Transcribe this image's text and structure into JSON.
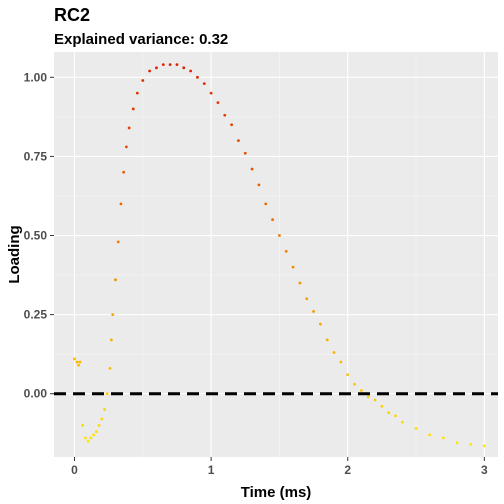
{
  "chart_data": {
    "type": "scatter",
    "title": "RC2",
    "subtitle": "Explained variance: 0.32",
    "xlabel": "Time (ms)",
    "ylabel": "Loading",
    "xlim": [
      -0.15,
      3.1
    ],
    "ylim": [
      -0.2,
      1.08
    ],
    "x_ticks": [
      0,
      1,
      2,
      3
    ],
    "x_tick_labels": [
      "0",
      "1",
      "2",
      "3"
    ],
    "y_ticks": [
      0,
      0.25,
      0.5,
      0.75,
      1.0
    ],
    "y_tick_labels": [
      "0.00",
      "0.25",
      "0.50",
      "0.75",
      "1.00"
    ],
    "grid": true,
    "legend": "none",
    "reference_line": {
      "y": 0,
      "style": "dashed",
      "color": "#000000"
    },
    "color_scale": {
      "low": "#ffe600",
      "high": "#dd2200"
    },
    "series": [
      {
        "points": [
          [
            0.0,
            0.11
          ],
          [
            0.02,
            0.1
          ],
          [
            0.03,
            0.09
          ],
          [
            0.04,
            0.1
          ],
          [
            0.06,
            -0.1
          ],
          [
            0.08,
            -0.14
          ],
          [
            0.1,
            -0.15
          ],
          [
            0.12,
            -0.14
          ],
          [
            0.14,
            -0.13
          ],
          [
            0.16,
            -0.12
          ],
          [
            0.18,
            -0.1
          ],
          [
            0.2,
            -0.08
          ],
          [
            0.22,
            -0.05
          ],
          [
            0.24,
            0.0
          ],
          [
            0.26,
            0.08
          ],
          [
            0.27,
            0.17
          ],
          [
            0.28,
            0.25
          ],
          [
            0.3,
            0.36
          ],
          [
            0.32,
            0.48
          ],
          [
            0.34,
            0.6
          ],
          [
            0.36,
            0.7
          ],
          [
            0.38,
            0.78
          ],
          [
            0.4,
            0.84
          ],
          [
            0.43,
            0.9
          ],
          [
            0.46,
            0.95
          ],
          [
            0.5,
            0.99
          ],
          [
            0.55,
            1.02
          ],
          [
            0.6,
            1.03
          ],
          [
            0.65,
            1.04
          ],
          [
            0.7,
            1.04
          ],
          [
            0.75,
            1.04
          ],
          [
            0.8,
            1.03
          ],
          [
            0.85,
            1.02
          ],
          [
            0.9,
            1.0
          ],
          [
            0.95,
            0.98
          ],
          [
            1.0,
            0.95
          ],
          [
            1.05,
            0.92
          ],
          [
            1.1,
            0.88
          ],
          [
            1.15,
            0.85
          ],
          [
            1.2,
            0.8
          ],
          [
            1.25,
            0.76
          ],
          [
            1.3,
            0.71
          ],
          [
            1.35,
            0.66
          ],
          [
            1.4,
            0.6
          ],
          [
            1.45,
            0.55
          ],
          [
            1.5,
            0.5
          ],
          [
            1.55,
            0.45
          ],
          [
            1.6,
            0.4
          ],
          [
            1.65,
            0.35
          ],
          [
            1.7,
            0.3
          ],
          [
            1.75,
            0.26
          ],
          [
            1.8,
            0.22
          ],
          [
            1.85,
            0.17
          ],
          [
            1.9,
            0.13
          ],
          [
            1.95,
            0.1
          ],
          [
            2.0,
            0.06
          ],
          [
            2.05,
            0.03
          ],
          [
            2.1,
            0.01
          ],
          [
            2.15,
            -0.01
          ],
          [
            2.2,
            -0.02
          ],
          [
            2.25,
            -0.04
          ],
          [
            2.3,
            -0.06
          ],
          [
            2.35,
            -0.07
          ],
          [
            2.4,
            -0.09
          ],
          [
            2.5,
            -0.11
          ],
          [
            2.6,
            -0.13
          ],
          [
            2.7,
            -0.14
          ],
          [
            2.8,
            -0.155
          ],
          [
            2.9,
            -0.16
          ],
          [
            3.0,
            -0.165
          ]
        ]
      }
    ]
  }
}
